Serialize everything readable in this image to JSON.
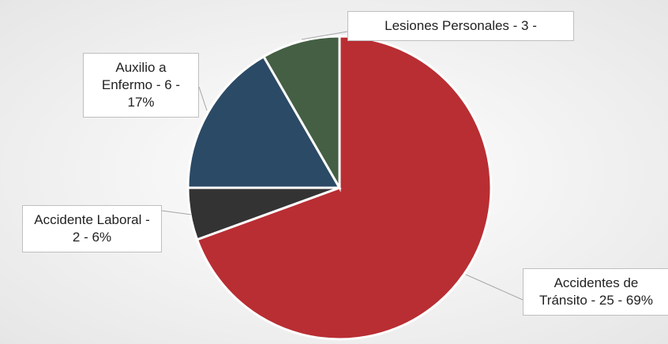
{
  "chart_data": {
    "type": "pie",
    "categories": [
      "Accidentes de Tránsito",
      "Accidente Laboral",
      "Auxilio a Enfermo",
      "Lesiones Personales"
    ],
    "values": [
      25,
      2,
      6,
      3
    ],
    "value_labels": [
      "Accidentes de Tránsito - 25 - 69%",
      "Accidente Laboral - 2 - 6%",
      "Auxilio a Enfermo - 6 - 17%",
      "Lesiones Personales - 3 -"
    ],
    "colors": [
      "#b82e33",
      "#333333",
      "#2b4a66",
      "#445f44"
    ]
  }
}
